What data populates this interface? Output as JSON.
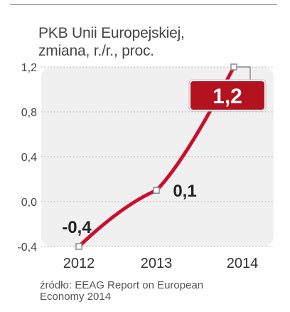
{
  "chart_data": {
    "type": "line",
    "title_lines": [
      "PKB Unii Europejskiej,",
      "zmiana, r./r., proc."
    ],
    "categories": [
      "2012",
      "2013",
      "2014"
    ],
    "values": [
      -0.4,
      0.1,
      1.2
    ],
    "data_labels": [
      "-0,4",
      "0,1",
      "1,2"
    ],
    "highlight_index": 2,
    "yticks": [
      "1,2",
      "0,8",
      "0,4",
      "0,0",
      "-0,4"
    ],
    "ytick_values": [
      1.2,
      0.8,
      0.4,
      0.0,
      -0.4
    ],
    "ylim": [
      -0.4,
      1.2
    ],
    "xlabel": "",
    "ylabel": "",
    "grid": "horizontal dotted",
    "line_color": "#c8102e",
    "highlight_box_color": "#b3121f",
    "panel_color": "#f0f0f0"
  },
  "source_lines": [
    "źródło: EEAG Report on European",
    "Economy 2014"
  ]
}
